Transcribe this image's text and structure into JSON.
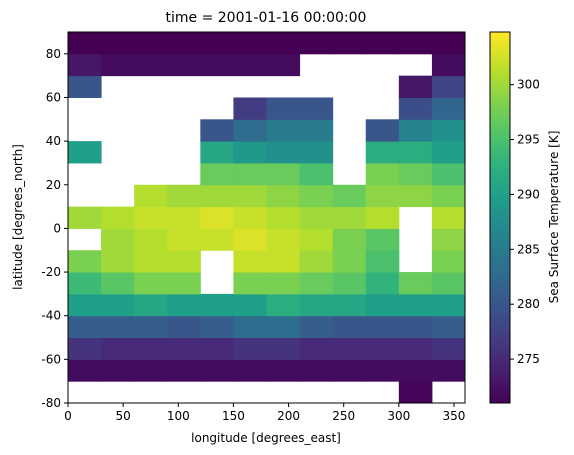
{
  "chart_data": {
    "type": "heatmap",
    "title": "time = 2001-01-16 00:00:00",
    "x_label": "longitude [degrees_east]",
    "y_label": "latitude [degrees_north]",
    "colorbar_label": "Sea Surface Temperature [K]",
    "colormap": "viridis",
    "xbins": [
      0,
      30,
      60,
      90,
      120,
      150,
      180,
      210,
      240,
      270,
      300,
      330,
      360
    ],
    "ybins": [
      -80,
      -70,
      -60,
      -50,
      -40,
      -30,
      -20,
      -10,
      0,
      10,
      20,
      30,
      40,
      50,
      60,
      70,
      80,
      90
    ],
    "z": [
      [
        null,
        null,
        null,
        null,
        null,
        null,
        null,
        null,
        null,
        null,
        271.5,
        null
      ],
      [
        272,
        272,
        272,
        272,
        272,
        272,
        272,
        272,
        272,
        272,
        272,
        272
      ],
      [
        276,
        275,
        275,
        275,
        275,
        276,
        276,
        275,
        275,
        275,
        275,
        276
      ],
      [
        281,
        281,
        281,
        280,
        281,
        283,
        283,
        281,
        280,
        280,
        280,
        281
      ],
      [
        290,
        290,
        291,
        290,
        290,
        290,
        292,
        291,
        291,
        290,
        290,
        290
      ],
      [
        294,
        296,
        298,
        298,
        null,
        298,
        298,
        297,
        296,
        293,
        297,
        296
      ],
      [
        298,
        300,
        301,
        301,
        null,
        302,
        302,
        300,
        298,
        295,
        null,
        298
      ],
      [
        null,
        300,
        301,
        302,
        302,
        303,
        302,
        301,
        298,
        296,
        null,
        299
      ],
      [
        300,
        301,
        302,
        302,
        303,
        302,
        301,
        300,
        300,
        301,
        null,
        301
      ],
      [
        null,
        null,
        301,
        300,
        300,
        300,
        299,
        298,
        297,
        299,
        299,
        298
      ],
      [
        null,
        null,
        null,
        null,
        297,
        297,
        297,
        295,
        null,
        298,
        297,
        295
      ],
      [
        290,
        null,
        null,
        null,
        291,
        289,
        288,
        288,
        null,
        292,
        292,
        290
      ],
      [
        null,
        null,
        null,
        null,
        280,
        283,
        285,
        285,
        null,
        280,
        286,
        288
      ],
      [
        null,
        null,
        null,
        null,
        null,
        277,
        280,
        280,
        null,
        null,
        279,
        282
      ],
      [
        280,
        null,
        null,
        null,
        null,
        null,
        null,
        null,
        null,
        null,
        273,
        278
      ],
      [
        273,
        272,
        272,
        272,
        272,
        272,
        272,
        null,
        null,
        null,
        null,
        272
      ],
      [
        271,
        271,
        271,
        271,
        271,
        271,
        271,
        271,
        271,
        271,
        271,
        271
      ]
    ],
    "xlim": [
      0,
      360
    ],
    "ylim": [
      -80,
      90
    ],
    "xticks": [
      0,
      50,
      100,
      150,
      200,
      250,
      300,
      350
    ],
    "yticks": [
      -80,
      -60,
      -40,
      -20,
      0,
      20,
      40,
      60,
      80
    ],
    "clim": [
      271,
      304.8
    ],
    "cticks": [
      275,
      280,
      285,
      290,
      295,
      300
    ]
  }
}
